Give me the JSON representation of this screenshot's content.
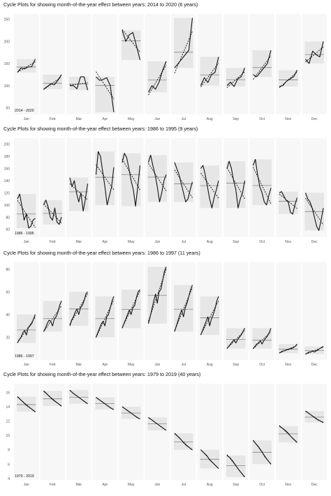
{
  "months": [
    "Jan",
    "Feb",
    "Mar",
    "Apr",
    "May",
    "Jun",
    "Jul",
    "Aug",
    "Sep",
    "Oct",
    "Nov",
    "Dec"
  ],
  "chart_data": [
    {
      "type": "line",
      "title": "Cycle Plots for showing month-of-the-year effect between years: 2014 to 2020 (6 years)",
      "period_label": "2014 - 2020",
      "ylim": [
        35,
        262
      ],
      "yticks": [
        50,
        100,
        150,
        200,
        250
      ],
      "grid": false,
      "series": [
        {
          "month": "Jan",
          "values": [
            130,
            140,
            138,
            142,
            143,
            160
          ]
        },
        {
          "month": "Feb",
          "values": [
            92,
            98,
            104,
            102,
            112,
            125
          ]
        },
        {
          "month": "Mar",
          "values": [
            100,
            100,
            93,
            120,
            120,
            90
          ]
        },
        {
          "month": "Apr",
          "values": [
            120,
            112,
            114,
            118,
            100,
            40
          ]
        },
        {
          "month": "May",
          "values": [
            225,
            200,
            215,
            220,
            190,
            158
          ]
        },
        {
          "month": "Jun",
          "values": [
            85,
            100,
            92,
            108,
            135,
            155
          ]
        },
        {
          "month": "Jul",
          "values": [
            140,
            150,
            160,
            170,
            180,
            253
          ]
        },
        {
          "month": "Aug",
          "values": [
            100,
            118,
            107,
            125,
            130,
            165
          ]
        },
        {
          "month": "Sep",
          "values": [
            100,
            108,
            98,
            115,
            120,
            140
          ]
        },
        {
          "month": "Oct",
          "values": [
            125,
            120,
            130,
            140,
            150,
            180
          ]
        },
        {
          "month": "Nov",
          "values": [
            98,
            100,
            110,
            115,
            120,
            135
          ]
        },
        {
          "month": "Dec",
          "values": [
            160,
            150,
            178,
            170,
            165,
            200
          ]
        }
      ]
    },
    {
      "type": "line",
      "title": "Cycle Plots for showing month-of-the-year effect between years: 1986 to 1995 (9 years)",
      "period_label": "1986 - 1995",
      "ylim": [
        47,
        210
      ],
      "yticks": [
        60,
        80,
        100,
        120,
        140,
        160,
        180,
        200
      ],
      "grid": false,
      "series": [
        {
          "month": "Jan",
          "values": [
            110,
            118,
            98,
            75,
            85,
            62,
            65,
            75,
            78
          ]
        },
        {
          "month": "Feb",
          "values": [
            100,
            108,
            97,
            80,
            75,
            95,
            72,
            68,
            80
          ]
        },
        {
          "month": "Mar",
          "values": [
            145,
            130,
            140,
            120,
            105,
            120,
            90,
            110,
            135
          ]
        },
        {
          "month": "Apr",
          "values": [
            150,
            188,
            180,
            155,
            130,
            100,
            115,
            130,
            162
          ]
        },
        {
          "month": "May",
          "values": [
            170,
            185,
            178,
            160,
            140,
            125,
            98,
            130,
            165
          ]
        },
        {
          "month": "Jun",
          "values": [
            170,
            182,
            165,
            150,
            130,
            105,
            120,
            140,
            150
          ]
        },
        {
          "month": "Jul",
          "values": [
            170,
            160,
            150,
            135,
            120,
            105,
            110,
            125,
            138
          ]
        },
        {
          "month": "Aug",
          "values": [
            160,
            165,
            150,
            130,
            110,
            95,
            112,
            125,
            140
          ]
        },
        {
          "month": "Sep",
          "values": [
            160,
            172,
            160,
            140,
            125,
            95,
            110,
            120,
            140
          ]
        },
        {
          "month": "Oct",
          "values": [
            165,
            175,
            150,
            130,
            120,
            105,
            100,
            115,
            128
          ]
        },
        {
          "month": "Nov",
          "values": [
            120,
            122,
            115,
            108,
            105,
            88,
            85,
            100,
            112
          ]
        },
        {
          "month": "Dec",
          "values": [
            120,
            110,
            105,
            95,
            80,
            65,
            58,
            75,
            95
          ]
        }
      ]
    },
    {
      "type": "line",
      "title": "Cycle Plots for showing month-of-the-year effect between years: 1986 to 1997 (11 years)",
      "period_label": "1986 - 1997",
      "ylim": [
        0,
        86
      ],
      "yticks": [
        20,
        40,
        60,
        80
      ],
      "grid": false,
      "series": [
        {
          "month": "Jan",
          "values": [
            15,
            18,
            20,
            24,
            26,
            22,
            28,
            30,
            32,
            36,
            40
          ]
        },
        {
          "month": "Feb",
          "values": [
            25,
            28,
            32,
            35,
            34,
            30,
            36,
            38,
            42,
            48,
            52
          ]
        },
        {
          "month": "Mar",
          "values": [
            30,
            35,
            38,
            42,
            45,
            40,
            46,
            48,
            52,
            58,
            60
          ]
        },
        {
          "month": "Apr",
          "values": [
            20,
            24,
            28,
            32,
            34,
            30,
            38,
            40,
            46,
            52,
            56
          ]
        },
        {
          "month": "May",
          "values": [
            28,
            32,
            36,
            40,
            44,
            40,
            46,
            48,
            55,
            60,
            62
          ]
        },
        {
          "month": "Jun",
          "values": [
            32,
            38,
            45,
            52,
            58,
            50,
            60,
            62,
            70,
            78,
            82
          ]
        },
        {
          "month": "Jul",
          "values": [
            25,
            30,
            35,
            40,
            44,
            38,
            46,
            50,
            56,
            62,
            66
          ]
        },
        {
          "month": "Aug",
          "values": [
            22,
            26,
            30,
            34,
            38,
            30,
            36,
            40,
            45,
            52,
            56
          ]
        },
        {
          "month": "Sep",
          "values": [
            10,
            12,
            14,
            16,
            18,
            15,
            18,
            20,
            22,
            25,
            28
          ]
        },
        {
          "month": "Oct",
          "values": [
            10,
            12,
            14,
            15,
            17,
            14,
            17,
            19,
            21,
            24,
            28
          ]
        },
        {
          "month": "Nov",
          "values": [
            6,
            7,
            8,
            8,
            9,
            9,
            10,
            10,
            11,
            12,
            14
          ]
        },
        {
          "month": "Dec",
          "values": [
            5,
            6,
            7,
            7,
            8,
            7,
            8,
            9,
            10,
            11,
            12
          ]
        }
      ]
    },
    {
      "type": "line",
      "title": "Cycle Plots for showing month-of-the-year effect between years: 1979 to 2019 (40 years)",
      "period_label": "1979 - 2019",
      "ylim": [
        3.8,
        17.2
      ],
      "yticks": [
        4,
        6,
        8,
        10,
        12,
        14,
        16
      ],
      "grid": false,
      "series": [
        {
          "month": "Jan",
          "values": [
            15.4,
            15.0,
            14.6,
            14.2,
            13.9,
            13.6,
            13.3
          ]
        },
        {
          "month": "Feb",
          "values": [
            16.2,
            15.8,
            15.4,
            15.0,
            14.7,
            14.4,
            14.1
          ]
        },
        {
          "month": "Mar",
          "values": [
            16.3,
            15.9,
            15.6,
            15.3,
            15.0,
            14.7,
            14.4
          ]
        },
        {
          "month": "Apr",
          "values": [
            15.3,
            15.0,
            14.7,
            14.4,
            14.1,
            13.8,
            13.6
          ]
        },
        {
          "month": "May",
          "values": [
            14.0,
            13.7,
            13.4,
            13.1,
            12.8,
            12.5,
            12.3
          ]
        },
        {
          "month": "Jun",
          "values": [
            12.5,
            12.2,
            11.9,
            11.6,
            11.3,
            11.0,
            10.7
          ]
        },
        {
          "month": "Jul",
          "values": [
            10.3,
            9.9,
            9.5,
            9.0,
            8.6,
            8.3,
            8.0
          ]
        },
        {
          "month": "Aug",
          "values": [
            8.0,
            7.6,
            7.2,
            6.6,
            6.2,
            5.8,
            5.4
          ]
        },
        {
          "month": "Sep",
          "values": [
            7.2,
            6.9,
            6.4,
            5.8,
            5.2,
            4.7,
            4.2
          ]
        },
        {
          "month": "Oct",
          "values": [
            9.3,
            8.8,
            8.3,
            7.7,
            7.0,
            6.5,
            6.0
          ]
        },
        {
          "month": "Nov",
          "values": [
            11.3,
            11.0,
            10.7,
            10.3,
            9.8,
            9.4,
            9.0
          ]
        },
        {
          "month": "Dec",
          "values": [
            13.4,
            13.1,
            12.8,
            12.5,
            12.2,
            12.0,
            11.8
          ]
        }
      ]
    }
  ]
}
